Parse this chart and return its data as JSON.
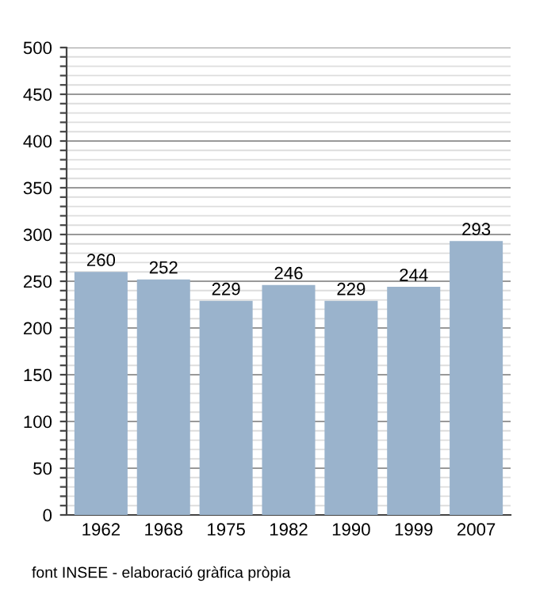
{
  "chart_data": {
    "type": "bar",
    "categories": [
      "1962",
      "1968",
      "1975",
      "1982",
      "1990",
      "1999",
      "2007"
    ],
    "values": [
      260,
      252,
      229,
      246,
      229,
      244,
      293
    ],
    "color": "#9ab3cc",
    "ylim": [
      0,
      500
    ],
    "yticks": [
      0,
      {
        "value": 10,
        "label": null
      },
      {
        "value": 20,
        "label": null
      },
      {
        "value": 30,
        "label": null
      },
      {
        "value": 40,
        "label": null
      },
      50,
      {
        "value": 60,
        "label": null
      },
      {
        "value": 70,
        "label": null
      },
      {
        "value": 80,
        "label": null
      },
      {
        "value": 90,
        "label": null
      },
      100,
      {
        "value": 110,
        "label": null
      },
      {
        "value": 120,
        "label": null
      },
      {
        "value": 130,
        "label": null
      },
      {
        "value": 140,
        "label": null
      },
      150,
      {
        "value": 160,
        "label": null
      },
      {
        "value": 170,
        "label": null
      },
      {
        "value": 180,
        "label": null
      },
      {
        "value": 190,
        "label": null
      },
      200,
      {
        "value": 210,
        "label": null
      },
      {
        "value": 220,
        "label": null
      },
      {
        "value": 230,
        "label": null
      },
      {
        "value": 240,
        "label": null
      },
      250,
      {
        "value": 260,
        "label": null
      },
      {
        "value": 270,
        "label": null
      },
      {
        "value": 280,
        "label": null
      },
      {
        "value": 290,
        "label": null
      },
      300,
      {
        "value": 310,
        "label": null
      },
      {
        "value": 320,
        "label": null
      },
      {
        "value": 330,
        "label": null
      },
      {
        "value": 340,
        "label": null
      },
      350,
      {
        "value": 360,
        "label": null
      },
      {
        "value": 370,
        "label": null
      },
      {
        "value": 380,
        "label": null
      },
      {
        "value": 390,
        "label": null
      },
      400,
      {
        "value": 410,
        "label": null
      },
      {
        "value": 420,
        "label": null
      },
      {
        "value": 430,
        "label": null
      },
      {
        "value": 440,
        "label": null
      },
      450,
      {
        "value": 460,
        "label": null
      },
      {
        "value": 470,
        "label": null
      },
      {
        "value": 480,
        "label": null
      },
      {
        "value": 490,
        "label": null
      },
      500
    ],
    "grid": "y",
    "data_labels": true,
    "annotations": [
      "font INSEE - elaboració gràfica pròpia"
    ]
  }
}
